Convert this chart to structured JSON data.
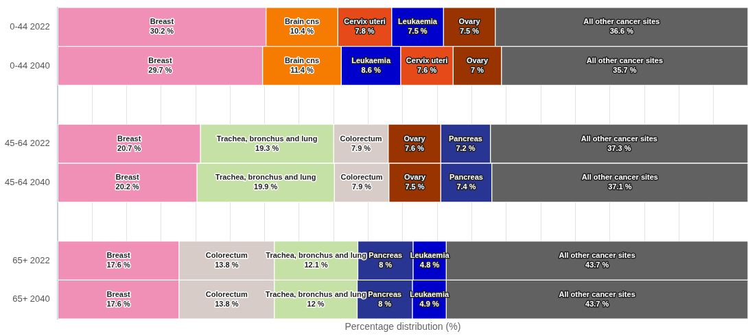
{
  "chart_data": {
    "type": "bar",
    "orientation": "horizontal",
    "stacked": true,
    "xlabel": "Percentage distribution (%)",
    "categories": [
      "0-44 2022",
      "0-44 2040",
      null,
      "45-64 2022",
      "45-64 2040",
      null,
      "65+ 2022",
      "65+ 2040"
    ],
    "xlim": [
      0,
      100
    ],
    "xticks": [
      {
        "value": 0,
        "label": null
      },
      {
        "value": 5,
        "label": null
      },
      {
        "value": 10,
        "label": null
      },
      {
        "value": 15,
        "label": null
      },
      {
        "value": 20,
        "label": null
      },
      {
        "value": 25,
        "label": null
      },
      {
        "value": 30,
        "label": null
      },
      {
        "value": 35,
        "label": null
      },
      {
        "value": 40,
        "label": null
      },
      {
        "value": 45,
        "label": null
      },
      {
        "value": 50,
        "label": null
      },
      {
        "value": 55,
        "label": null
      },
      {
        "value": 60,
        "label": null
      },
      {
        "value": 65,
        "label": null
      },
      {
        "value": 70,
        "label": null
      },
      {
        "value": 75,
        "label": null
      },
      {
        "value": 80,
        "label": null
      },
      {
        "value": 85,
        "label": null
      },
      {
        "value": 90,
        "label": null
      },
      {
        "value": 95,
        "label": null
      }
    ],
    "tick_labels": "y",
    "grid": "x",
    "series": [
      {
        "values": [
          30.2,
          29.7,
          null,
          20.7,
          20.2,
          null,
          17.6,
          17.6
        ],
        "colors": [
          "#f190b7",
          "#f190b7",
          null,
          "#f190b7",
          "#f190b7",
          null,
          "#f190b7",
          "#f190b7"
        ],
        "value_labels": [
          "Breast\n30.2 %",
          "Breast\n29.7 %",
          null,
          "Breast\n20.7 %",
          "Breast\n20.2 %",
          null,
          "Breast\n17.6 %",
          "Breast\n17.6 %"
        ]
      },
      {
        "values": [
          10.4,
          11.4,
          null,
          19.3,
          19.9,
          null,
          13.8,
          13.8
        ],
        "colors": [
          "#f57c00",
          "#f57c00",
          null,
          "#c5e1a5",
          "#c5e1a5",
          null,
          "#d7ccc8",
          "#d7ccc8"
        ],
        "value_labels": [
          "Brain cns\n10.4 %",
          "Brain cns\n11.4 %",
          null,
          "Trachea, bronchus and lung\n19.3 %",
          "Trachea, bronchus and lung\n19.9 %",
          null,
          "Colorectum\n13.8 %",
          "Colorectum\n13.8 %"
        ]
      },
      {
        "values": [
          7.8,
          8.6,
          null,
          7.9,
          7.9,
          null,
          12.1,
          12
        ],
        "colors": [
          "#e64a19",
          "#0000cc",
          null,
          "#d7ccc8",
          "#d7ccc8",
          null,
          "#c5e1a5",
          "#c5e1a5"
        ],
        "value_labels": [
          "Cervix uteri\n7.8 %",
          "Leukaemia\n8.6 %",
          null,
          "Colorectum\n7.9 %",
          "Colorectum\n7.9 %",
          null,
          "Trachea, bronchus and lung\n12.1 %",
          "Trachea, bronchus and lung\n12 %"
        ]
      },
      {
        "values": [
          7.5,
          7.6,
          null,
          7.6,
          7.5,
          null,
          8,
          8
        ],
        "colors": [
          "#0000cc",
          "#e64a19",
          null,
          "#993300",
          "#993300",
          null,
          "#283593",
          "#283593"
        ],
        "value_labels": [
          "Leukaemia\n7.5 %",
          "Cervix uteri\n7.6 %",
          null,
          "Ovary\n7.6 %",
          "Ovary\n7.5 %",
          null,
          "Pancreas\n8 %",
          "Pancreas\n8 %"
        ]
      },
      {
        "values": [
          7.5,
          7,
          null,
          7.2,
          7.4,
          null,
          4.8,
          4.9
        ],
        "colors": [
          "#993300",
          "#993300",
          null,
          "#283593",
          "#283593",
          null,
          "#0000cc",
          "#0000cc"
        ],
        "value_labels": [
          "Ovary\n7.5 %",
          "Ovary\n7 %",
          null,
          "Pancreas\n7.2 %",
          "Pancreas\n7.4 %",
          null,
          "Leukaemia\n4.8 %",
          "Leukaemia\n4.9 %"
        ]
      },
      {
        "values": [
          36.6,
          35.7,
          null,
          37.3,
          37.1,
          null,
          43.7,
          43.7
        ],
        "colors": [
          "#616161",
          "#616161",
          null,
          "#616161",
          "#616161",
          null,
          "#616161",
          "#616161"
        ],
        "value_labels": [
          "All other cancer sites\n36.6 %",
          "All other cancer sites\n35.7 %",
          null,
          "All other cancer sites\n37.3 %",
          "All other cancer sites\n37.1 %",
          null,
          "All other cancer sites\n43.7 %",
          "All other cancer sites\n43.7 %"
        ]
      }
    ]
  }
}
